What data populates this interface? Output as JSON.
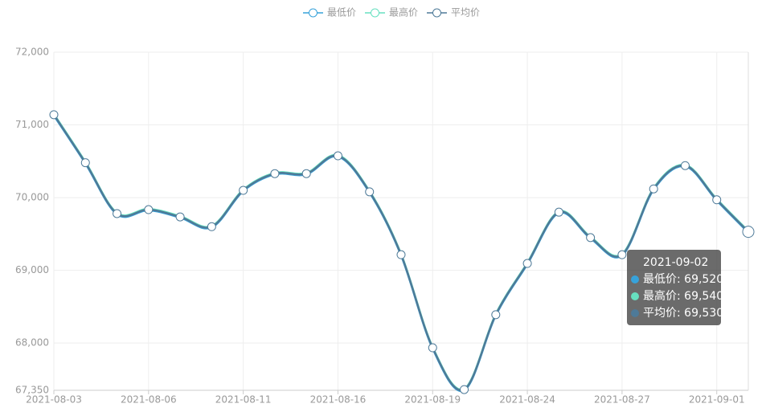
{
  "chart_data": {
    "type": "line",
    "categories": [
      "2021-08-03",
      null,
      null,
      "2021-08-06",
      null,
      null,
      "2021-08-11",
      null,
      null,
      "2021-08-16",
      null,
      null,
      "2021-08-19",
      null,
      null,
      "2021-08-24",
      null,
      null,
      "2021-08-27",
      null,
      null,
      "2021-09-01",
      null
    ],
    "series": [
      {
        "name": "最低价",
        "color": "#37a2da",
        "values": [
          71130,
          70470,
          69770,
          69825,
          69725,
          69590,
          70090,
          70320,
          70320,
          70565,
          70070,
          69205,
          67925,
          67350,
          68380,
          69085,
          69790,
          69440,
          69205,
          70110,
          70430,
          69960,
          69520
        ]
      },
      {
        "name": "最高价",
        "color": "#67e0c0",
        "values": [
          71150,
          70490,
          69790,
          69845,
          69745,
          69610,
          70110,
          70340,
          70340,
          70585,
          70090,
          69225,
          67945,
          67370,
          68400,
          69105,
          69810,
          69460,
          69225,
          70130,
          70450,
          69980,
          69540
        ]
      },
      {
        "name": "平均价",
        "color": "#4e7a98",
        "values": [
          71140,
          70480,
          69780,
          69835,
          69735,
          69600,
          70100,
          70330,
          70330,
          70575,
          70080,
          69215,
          67935,
          67360,
          68390,
          69095,
          69800,
          69450,
          69215,
          70120,
          70440,
          69970,
          69530
        ]
      }
    ],
    "ylim": [
      67350,
      72000
    ],
    "yticks": [
      {
        "value": 67350,
        "label": "67,350"
      },
      {
        "value": 68000,
        "label": "68,000"
      },
      {
        "value": 69000,
        "label": "69,000"
      },
      {
        "value": 70000,
        "label": "70,000"
      },
      {
        "value": 71000,
        "label": "71,000"
      },
      {
        "value": 72000,
        "label": "72,000"
      }
    ],
    "grid": true,
    "legend": "top",
    "tooltip": {
      "index": 22,
      "category": "2021-09-02",
      "value_labels": [
        "69,520",
        "69,540",
        "69,530"
      ]
    }
  }
}
